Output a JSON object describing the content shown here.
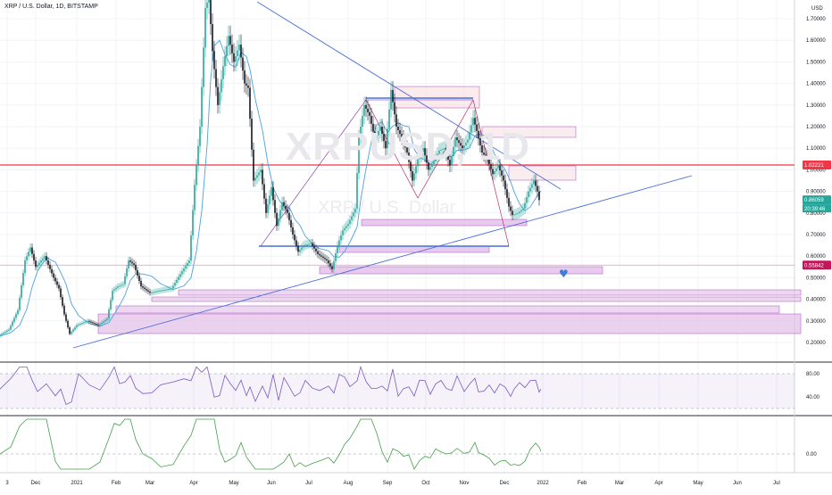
{
  "header": {
    "symbol_line": "XRP / U.S. Dollar, 1D, BITSTAMP"
  },
  "currency": "USD",
  "watermark": {
    "ticker": "XRPUSD, 1D",
    "name": "XRP / U.S. Dollar"
  },
  "colors": {
    "up": "#26a69a",
    "down": "#131722",
    "ma": "#4aa3df",
    "rsi": "#7e57c2",
    "osc": "#43a047",
    "line_red": "#f23645",
    "trend": "#4a6fd8",
    "zone": "#e1bee7"
  },
  "chart_data": {
    "type": "candlestick",
    "symbol": "XRP / U.S. Dollar",
    "interval": "1D",
    "exchange": "BITSTAMP",
    "ylim": [
      0.15,
      1.85
    ],
    "y_ticks": [
      "1.70000",
      "1.60000",
      "1.50000",
      "1.40000",
      "1.30000",
      "1.20000",
      "1.10000",
      "1.00000",
      "0.90000",
      "0.80000",
      "0.70000",
      "0.60000",
      "0.50000",
      "0.40000",
      "0.30000",
      "0.20000"
    ],
    "x_ticks": [
      "3",
      "Dec",
      "2021",
      "Feb",
      "Mar",
      "Apr",
      "May",
      "Jun",
      "Jul",
      "Aug",
      "Sep",
      "Oct",
      "Nov",
      "Dec",
      "2022",
      "Feb",
      "Mar",
      "Apr",
      "May",
      "Jun",
      "Jul"
    ],
    "price_labels": [
      {
        "value": 1.02221,
        "text": "1.02221",
        "color": "#f23645"
      },
      {
        "value": 0.86059,
        "text": "0.86059",
        "color": "#26a69a"
      },
      {
        "value": 0.55842,
        "text": "0.55842",
        "color": "#c2185b"
      }
    ],
    "countdown": "20:39:46",
    "close_path": [
      [
        0,
        0.23
      ],
      [
        12,
        0.26
      ],
      [
        22,
        0.35
      ],
      [
        30,
        0.58
      ],
      [
        36,
        0.64
      ],
      [
        42,
        0.55
      ],
      [
        52,
        0.6
      ],
      [
        62,
        0.5
      ],
      [
        68,
        0.45
      ],
      [
        74,
        0.33
      ],
      [
        80,
        0.24
      ],
      [
        88,
        0.28
      ],
      [
        100,
        0.3
      ],
      [
        112,
        0.28
      ],
      [
        122,
        0.31
      ],
      [
        128,
        0.44
      ],
      [
        134,
        0.46
      ],
      [
        140,
        0.47
      ],
      [
        146,
        0.58
      ],
      [
        152,
        0.56
      ],
      [
        160,
        0.46
      ],
      [
        170,
        0.43
      ],
      [
        180,
        0.44
      ],
      [
        194,
        0.45
      ],
      [
        206,
        0.53
      ],
      [
        214,
        0.58
      ],
      [
        220,
        0.93
      ],
      [
        226,
        1.2
      ],
      [
        232,
        1.75
      ],
      [
        236,
        1.8
      ],
      [
        240,
        1.55
      ],
      [
        246,
        1.3
      ],
      [
        252,
        1.48
      ],
      [
        258,
        1.62
      ],
      [
        264,
        1.5
      ],
      [
        270,
        1.58
      ],
      [
        276,
        1.4
      ],
      [
        280,
        1.38
      ],
      [
        286,
        0.95
      ],
      [
        294,
        1.0
      ],
      [
        300,
        0.8
      ],
      [
        306,
        0.92
      ],
      [
        312,
        0.74
      ],
      [
        318,
        0.85
      ],
      [
        324,
        0.8
      ],
      [
        330,
        0.7
      ],
      [
        336,
        0.62
      ],
      [
        342,
        0.65
      ],
      [
        350,
        0.66
      ],
      [
        358,
        0.61
      ],
      [
        368,
        0.58
      ],
      [
        374,
        0.54
      ],
      [
        380,
        0.65
      ],
      [
        386,
        0.72
      ],
      [
        392,
        0.75
      ],
      [
        400,
        0.82
      ],
      [
        404,
        1.15
      ],
      [
        410,
        1.3
      ],
      [
        416,
        1.25
      ],
      [
        422,
        1.14
      ],
      [
        428,
        1.2
      ],
      [
        434,
        1.1
      ],
      [
        440,
        1.37
      ],
      [
        446,
        1.2
      ],
      [
        452,
        1.15
      ],
      [
        458,
        1.08
      ],
      [
        464,
        0.95
      ],
      [
        470,
        1.05
      ],
      [
        476,
        1.1
      ],
      [
        482,
        1.0
      ],
      [
        488,
        1.04
      ],
      [
        494,
        1.09
      ],
      [
        500,
        1.1
      ],
      [
        506,
        1.02
      ],
      [
        512,
        1.15
      ],
      [
        520,
        1.1
      ],
      [
        526,
        1.14
      ],
      [
        532,
        1.24
      ],
      [
        536,
        1.18
      ],
      [
        542,
        1.08
      ],
      [
        548,
        1.05
      ],
      [
        554,
        0.98
      ],
      [
        560,
        1.02
      ],
      [
        566,
        0.95
      ],
      [
        572,
        0.83
      ],
      [
        576,
        0.79
      ],
      [
        582,
        0.8
      ],
      [
        588,
        0.82
      ],
      [
        594,
        0.9
      ],
      [
        600,
        0.95
      ],
      [
        604,
        0.9
      ],
      [
        606,
        0.86
      ]
    ],
    "rsi": {
      "levels": [
        80,
        40
      ],
      "tick_labels": [
        "80.00",
        "40.00"
      ]
    },
    "oscillator": {
      "levels": [
        0
      ],
      "tick_labels": [
        "0.00"
      ]
    }
  }
}
